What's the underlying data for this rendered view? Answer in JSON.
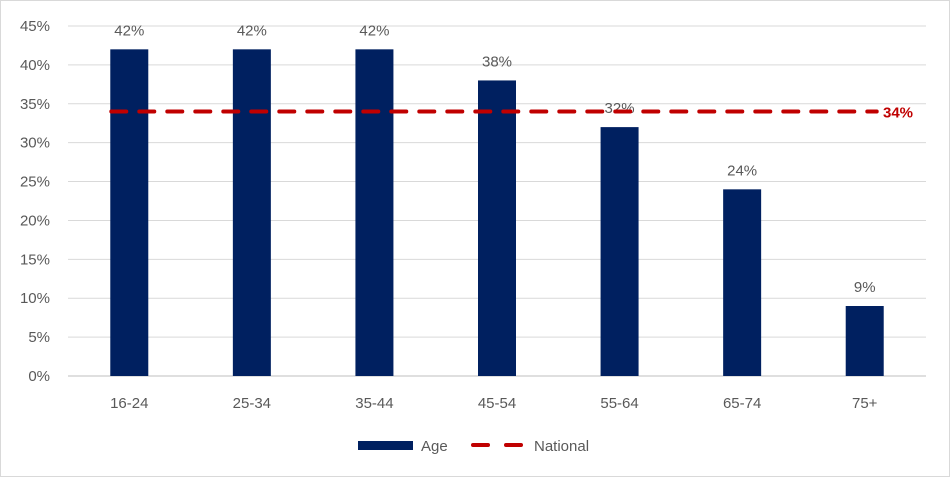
{
  "chart_data": {
    "type": "bar",
    "title": "",
    "xlabel": "",
    "ylabel": "",
    "categories": [
      "16-24",
      "25-34",
      "35-44",
      "45-54",
      "55-64",
      "65-74",
      "75+"
    ],
    "series": [
      {
        "name": "Age",
        "type": "bar",
        "values": [
          42,
          42,
          42,
          38,
          32,
          24,
          9
        ],
        "color": "#002060",
        "data_labels": [
          "42%",
          "42%",
          "42%",
          "38%",
          "32%",
          "24%",
          "9%"
        ]
      },
      {
        "name": "National",
        "type": "line",
        "style": "dashed",
        "values": [
          34,
          34,
          34,
          34,
          34,
          34,
          34
        ],
        "color": "#C00000",
        "end_label": "34%"
      }
    ],
    "ylim": [
      0,
      45
    ],
    "yticks": [
      0,
      5,
      10,
      15,
      20,
      25,
      30,
      35,
      40,
      45
    ],
    "ytick_labels": [
      "0%",
      "5%",
      "10%",
      "15%",
      "20%",
      "25%",
      "30%",
      "35%",
      "40%",
      "45%"
    ],
    "grid": true,
    "legend": "bottom"
  }
}
